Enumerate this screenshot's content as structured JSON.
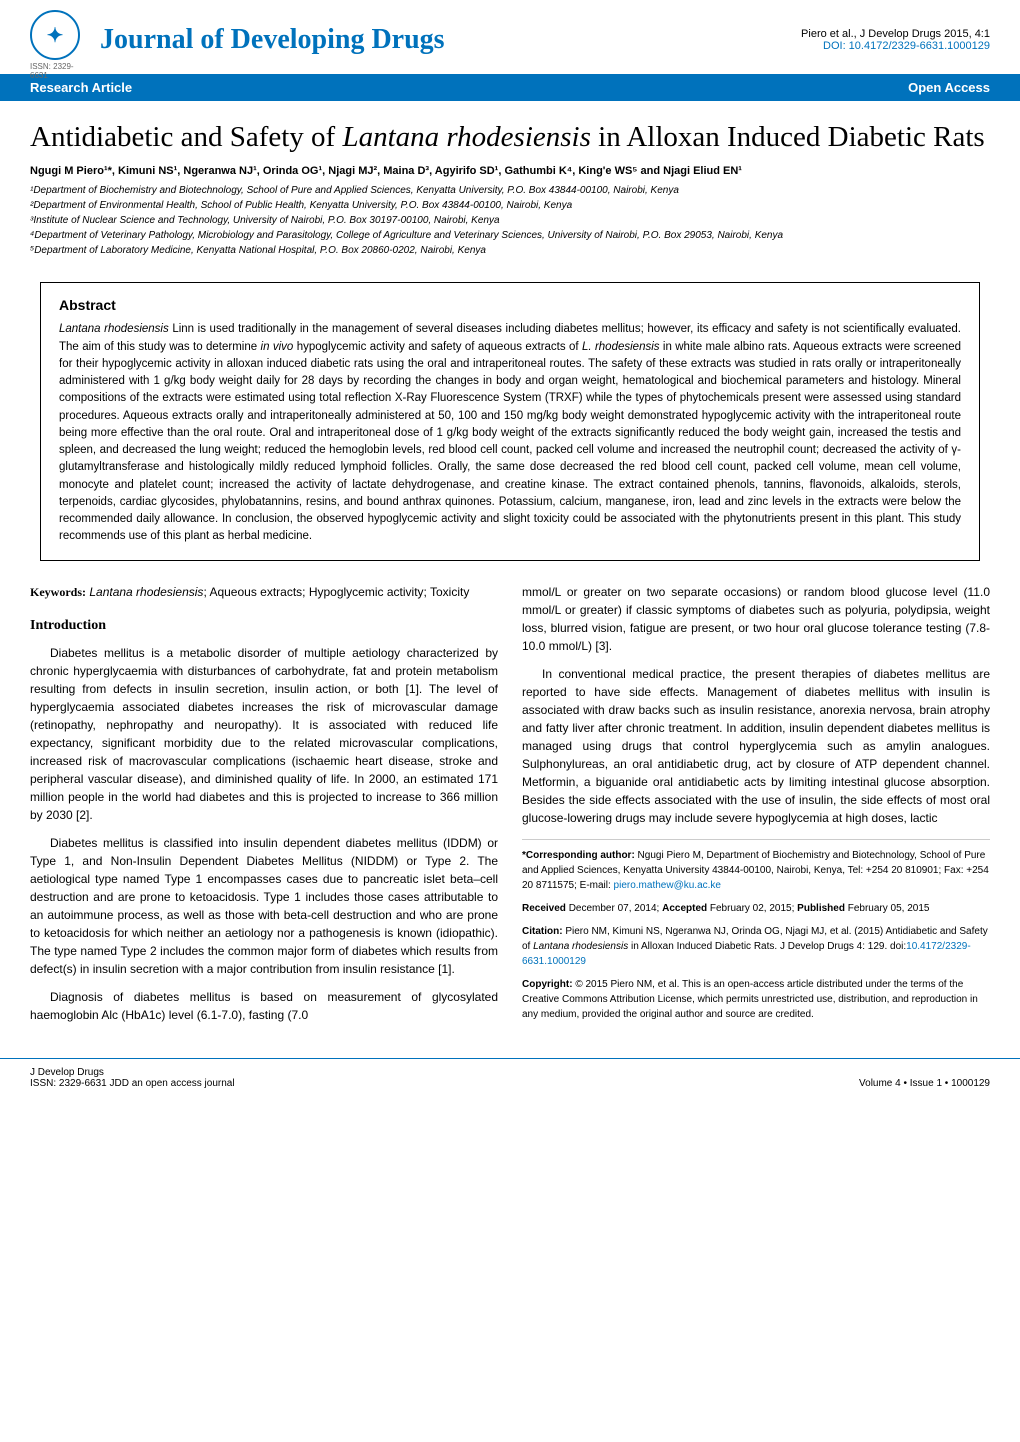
{
  "header": {
    "issn_label": "ISSN: 2329-6631",
    "journal_name": "Journal of Developing Drugs",
    "citation": "Piero et al., J Develop Drugs  2015, 4:1",
    "doi": "DOI: 10.4172/2329-6631.1000129"
  },
  "banner": {
    "left": "Research Article",
    "right": "Open Access"
  },
  "title": {
    "pre": "Antidiabetic and Safety of ",
    "italic": "Lantana rhodesiensis",
    "post": " in Alloxan Induced Diabetic Rats"
  },
  "authors": "Ngugi M Piero¹*, Kimuni NS¹, Ngeranwa NJ¹, Orinda OG¹, Njagi MJ², Maina D³, Agyirifo SD¹, Gathumbi K⁴, King'e WS⁵ and Njagi Eliud EN¹",
  "affiliations": [
    "¹Department of Biochemistry and Biotechnology, School of Pure and Applied Sciences, Kenyatta University, P.O.  Box 43844-00100, Nairobi, Kenya",
    "²Department of Environmental Health, School of Public Health, Kenyatta University, P.O. Box 43844-00100, Nairobi, Kenya",
    "³Institute of Nuclear Science and Technology, University of Nairobi, P.O. Box 30197-00100, Nairobi, Kenya",
    "⁴Department of Veterinary Pathology, Microbiology and Parasitology, College of Agriculture and Veterinary Sciences, University of Nairobi, P.O. Box 29053, Nairobi, Kenya",
    "⁵Department of Laboratory Medicine, Kenyatta National Hospital, P.O. Box 20860-0202, Nairobi, Kenya"
  ],
  "abstract": {
    "heading": "Abstract",
    "text_parts": {
      "p1a": "Lantana rhodesiensis",
      "p1b": " Linn is used traditionally in the management of several diseases including diabetes mellitus; however, its efficacy and safety is not scientifically evaluated. The aim of this study was to determine ",
      "p1c": "in vivo",
      "p1d": " hypoglycemic activity and safety of aqueous extracts of ",
      "p1e": "L. rhodesiensis",
      "p1f": " in white male albino rats. Aqueous extracts were screened for their hypoglycemic activity in alloxan induced diabetic rats using the oral and intraperitoneal routes. The safety of these extracts was studied in rats orally or intraperitoneally administered with 1 g/kg body weight daily for 28 days by recording the changes in body and organ weight, hematological and biochemical parameters and histology. Mineral compositions of the extracts were estimated using total reflection X-Ray Fluorescence System (TRXF) while the types of phytochemicals present were assessed using standard procedures. Aqueous extracts orally and intraperitoneally administered at 50, 100 and 150 mg/kg body weight demonstrated hypoglycemic activity with the intraperitoneal route being more effective than the oral route. Oral and intraperitoneal dose of 1 g/kg body weight of the extracts significantly reduced the body weight gain, increased the testis and spleen, and decreased the lung weight; reduced the hemoglobin levels, red blood cell count, packed cell volume and increased the neutrophil count; decreased the activity of γ-glutamyltransferase and histologically mildly reduced lymphoid follicles. Orally, the same dose decreased the red blood cell count, packed cell volume, mean cell volume, monocyte and platelet count; increased the activity of lactate dehydrogenase, and creatine kinase. The extract contained phenols, tannins, flavonoids, alkaloids, sterols, terpenoids, cardiac glycosides, phylobatannins, resins, and bound anthrax quinones. Potassium, calcium, manganese, iron, lead and zinc levels in the extracts were below the recommended daily allowance. In conclusion, the observed hypoglycemic activity and slight toxicity could be associated with the phytonutrients present in this plant. This study recommends use of this plant as herbal medicine."
    }
  },
  "keywords": {
    "label": "Keywords:",
    "italic": "Lantana rhodesiensis",
    "text": "; Aqueous extracts; Hypoglycemic activity; Toxicity"
  },
  "introduction": {
    "heading": "Introduction",
    "paragraphs": [
      "Diabetes mellitus is a metabolic disorder of multiple aetiology characterized by chronic hyperglycaemia with disturbances of carbohydrate, fat and protein metabolism resulting from defects in insulin secretion, insulin action, or both [1]. The level of hyperglycaemia associated diabetes increases the risk of microvascular damage (retinopathy, nephropathy and neuropathy). It is associated with reduced life expectancy, significant morbidity due to the related microvascular complications, increased risk of macrovascular complications (ischaemic heart disease, stroke and peripheral vascular disease), and diminished quality of life. In 2000, an estimated 171 million people in the world had diabetes and this is projected to increase to 366 million by 2030 [2].",
      "Diabetes mellitus is classified into insulin dependent diabetes mellitus (IDDM) or Type 1, and Non-Insulin Dependent Diabetes Mellitus (NIDDM) or Type 2. The aetiological type named Type 1 encompasses cases due to pancreatic islet beta–cell destruction and are prone to ketoacidosis. Type 1 includes those cases attributable to an autoimmune process, as well as those with beta-cell destruction and who are prone to ketoacidosis for which neither an aetiology nor a pathogenesis is known (idiopathic). The type named Type 2 includes the common major form of diabetes which results from defect(s) in insulin secretion with a major contribution from insulin resistance [1].",
      "Diagnosis of diabetes mellitus is based on measurement of glycosylated haemoglobin Alc (HbA1c) level (6.1-7.0), fasting (7.0"
    ]
  },
  "right_col": {
    "paragraphs": [
      "mmol/L or greater on two separate occasions) or random blood glucose level (11.0 mmol/L or greater) if classic symptoms of diabetes such as polyuria, polydipsia, weight loss, blurred vision, fatigue are present, or two hour oral glucose tolerance testing (7.8-10.0 mmol/L) [3].",
      "In conventional medical practice, the present therapies of diabetes mellitus are reported to have side effects. Management of diabetes mellitus with insulin is associated with draw backs such as insulin resistance, anorexia nervosa, brain atrophy and fatty liver after chronic treatment. In addition, insulin dependent diabetes mellitus is managed using drugs that control hyperglycemia such as amylin analogues. Sulphonylureas, an oral antidiabetic drug, act by closure of ATP dependent channel. Metformin, a biguanide oral antidiabetic acts by limiting intestinal glucose absorption. Besides the side effects associated with the use of insulin, the side effects of most oral glucose-lowering drugs may include severe hypoglycemia at high doses, lactic"
    ]
  },
  "corresponding": {
    "label": "*Corresponding author:",
    "text": " Ngugi Piero M, Department of Biochemistry and Biotechnology, School of Pure and Applied Sciences, Kenyatta University 43844-00100, Nairobi, Kenya, Tel: +254 20 810901; Fax: +254 20 8711575; E-mail: ",
    "email": "piero.mathew@ku.ac.ke",
    "received_label": "Received",
    "received": " December 07, 2014; ",
    "accepted_label": "Accepted",
    "accepted": " February 02, 2015; ",
    "published_label": "Published",
    "published": " February 05, 2015",
    "citation_label": "Citation:",
    "citation_text": " Piero NM, Kimuni NS, Ngeranwa NJ, Orinda OG, Njagi MJ, et al. (2015) Antidiabetic and Safety of ",
    "citation_italic": "Lantana rhodesiensis",
    "citation_text2": " in Alloxan Induced Diabetic Rats. J Develop Drugs 4: 129. doi:",
    "citation_doi": "10.4172/2329-6631.1000129",
    "copyright_label": "Copyright:",
    "copyright_text": " © 2015 Piero NM, et al. This is an open-access article distributed under the terms of the Creative Commons Attribution License, which permits unrestricted use, distribution, and reproduction in any medium, provided the original author and source are credited."
  },
  "footer": {
    "left_line1": "J Develop Drugs",
    "left_line2": "ISSN: 2329-6631 JDD an open access journal",
    "right": "Volume 4 • Issue 1 • 1000129"
  },
  "colors": {
    "brand_blue": "#0072bc",
    "text_black": "#000000",
    "border_gray": "#cccccc"
  }
}
